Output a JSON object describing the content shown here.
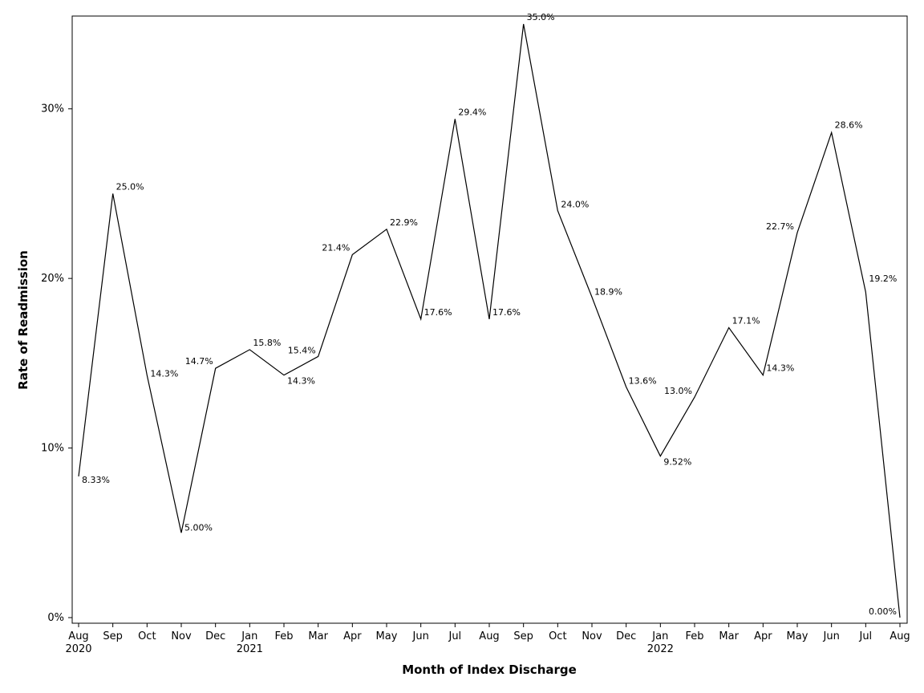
{
  "chart_data": {
    "type": "line",
    "xlabel": "Month of Index Discharge",
    "ylabel": "Rate of Readmission",
    "ylim": [
      0,
      35
    ],
    "yticks": [
      0,
      10,
      20,
      30
    ],
    "ytick_labels": [
      "0%",
      "10%",
      "20%",
      "30%"
    ],
    "grid": false,
    "legend": "none",
    "categories": [
      "Aug",
      "Sep",
      "Oct",
      "Nov",
      "Dec",
      "Jan",
      "Feb",
      "Mar",
      "Apr",
      "May",
      "Jun",
      "Jul",
      "Aug",
      "Sep",
      "Oct",
      "Nov",
      "Dec",
      "Jan",
      "Feb",
      "Mar",
      "Apr",
      "May",
      "Jun",
      "Jul",
      "Aug"
    ],
    "category_years": {
      "0": "2020",
      "5": "2021",
      "17": "2022"
    },
    "series": [
      {
        "values": [
          8.33,
          25.0,
          14.3,
          5.0,
          14.7,
          15.8,
          14.3,
          15.4,
          21.4,
          22.9,
          17.6,
          29.4,
          17.6,
          35.0,
          24.0,
          18.9,
          13.6,
          9.52,
          13.0,
          17.1,
          14.3,
          22.7,
          28.6,
          19.2,
          0.0
        ],
        "labels": [
          "8.33%",
          "25.0%",
          "14.3%",
          "5.00%",
          "14.7%",
          "15.8%",
          "14.3%",
          "15.4%",
          "21.4%",
          "22.9%",
          "17.6%",
          "29.4%",
          "17.6%",
          "35.0%",
          "24.0%",
          "18.9%",
          "13.6%",
          "9.52%",
          "13.0%",
          "17.1%",
          "14.3%",
          "22.7%",
          "28.6%",
          "19.2%",
          "0.00%"
        ],
        "color": "#000000"
      }
    ]
  }
}
